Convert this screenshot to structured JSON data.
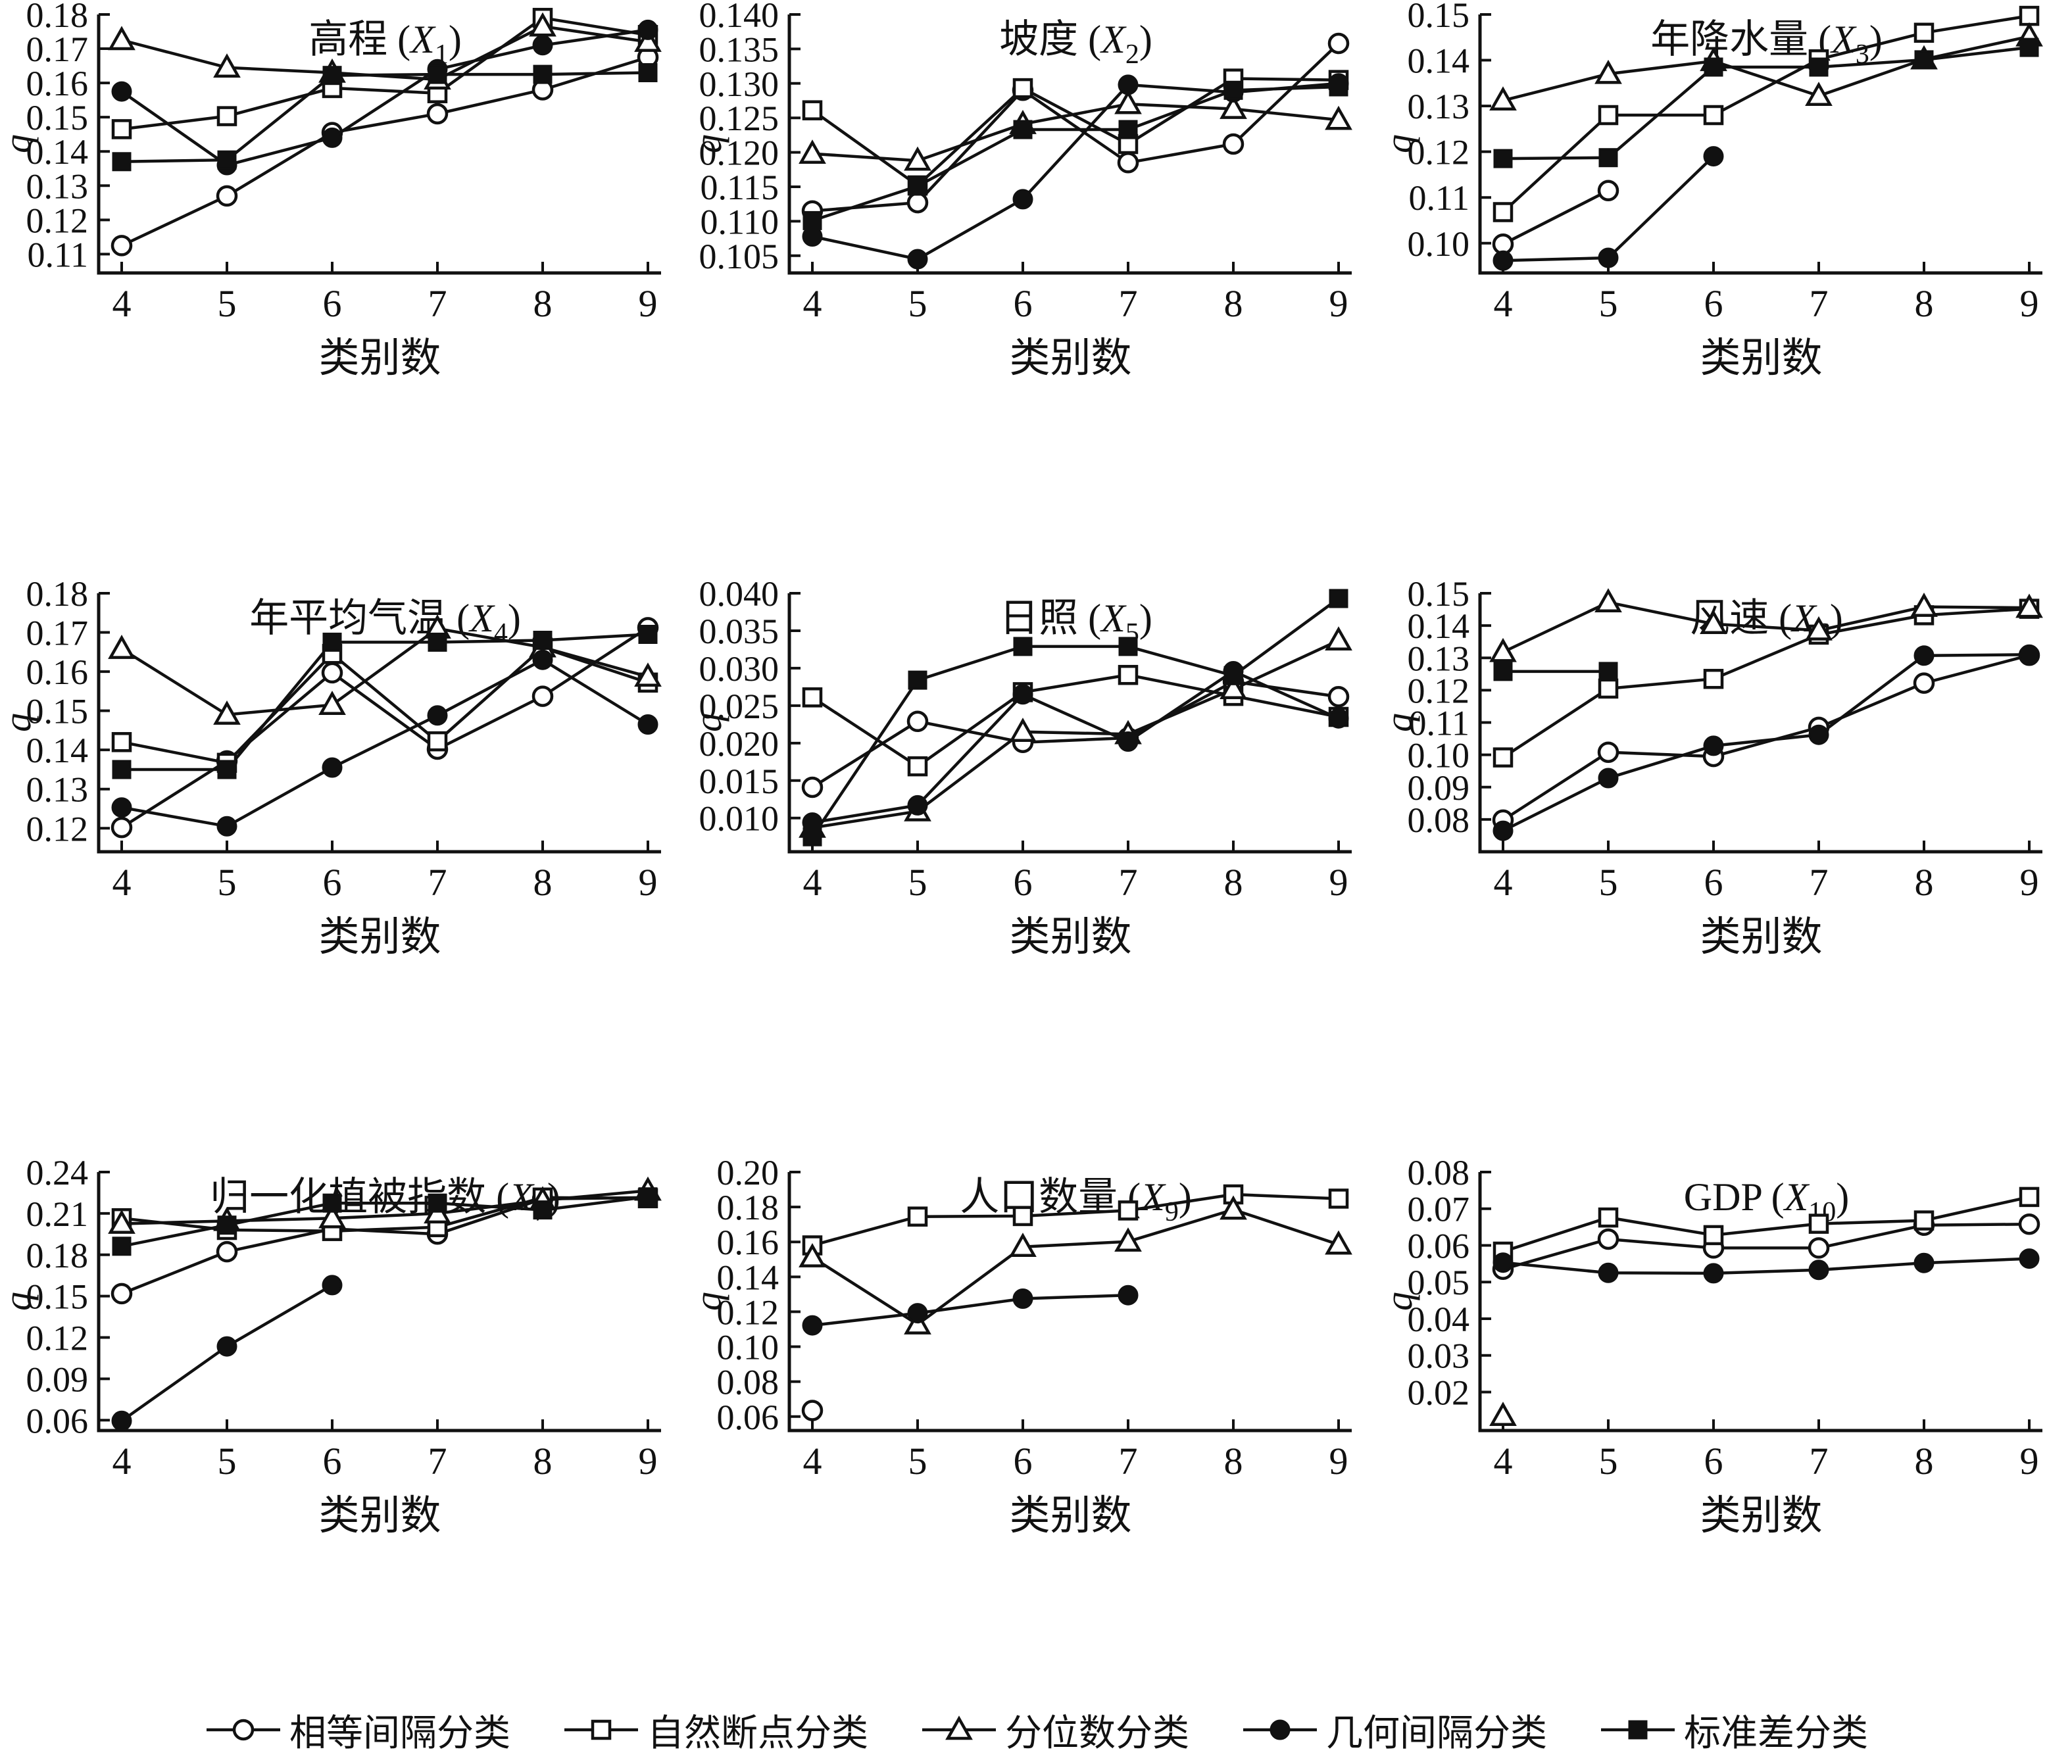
{
  "figure": {
    "xlabel": "类别数",
    "ylabel": "q",
    "x_categories": [
      4,
      5,
      6,
      7,
      8,
      9
    ],
    "line_color": "#111111",
    "background": "#ffffff",
    "series_defs": [
      {
        "id": "equal-interval",
        "label": "相等间隔分类",
        "marker": "circle",
        "fill": "open"
      },
      {
        "id": "natural-breaks",
        "label": "自然断点分类",
        "marker": "square",
        "fill": "open"
      },
      {
        "id": "quantile",
        "label": "分位数分类",
        "marker": "triangle",
        "fill": "open"
      },
      {
        "id": "geometric-interval",
        "label": "几何间隔分类",
        "marker": "circle",
        "fill": "filled"
      },
      {
        "id": "std-dev",
        "label": "标准差分类",
        "marker": "square",
        "fill": "filled"
      }
    ]
  },
  "chart_data": [
    {
      "type": "line",
      "id": "x1",
      "title_zh": "高程",
      "title_var": "X",
      "title_sub": "1",
      "xlabel": "类别数",
      "ylabel": "q",
      "x": [
        4,
        5,
        6,
        7,
        8,
        9
      ],
      "ylim": [
        0.1045,
        0.18
      ],
      "yticks": [
        0.11,
        0.12,
        0.13,
        0.14,
        0.15,
        0.16,
        0.17,
        0.18
      ],
      "ytick_decimals": 2,
      "series": [
        {
          "name": "相等间隔分类",
          "values": [
            0.1125,
            0.127,
            0.1455,
            0.151,
            0.158,
            0.1675
          ]
        },
        {
          "name": "自然断点分类",
          "values": [
            0.1465,
            0.1503,
            0.1585,
            0.157,
            0.179,
            0.174
          ]
        },
        {
          "name": "分位数分类",
          "values": [
            0.1725,
            0.1645,
            0.163,
            0.161,
            0.1765,
            0.172
          ]
        },
        {
          "name": "几何间隔分类",
          "values": [
            0.1575,
            0.136,
            0.144,
            0.164,
            0.171,
            0.1755
          ]
        },
        {
          "name": "标准差分类",
          "values": [
            0.137,
            0.1375,
            0.1622,
            0.1625,
            0.1625,
            0.163
          ]
        }
      ]
    },
    {
      "type": "line",
      "id": "x2",
      "title_zh": "坡度",
      "title_var": "X",
      "title_sub": "2",
      "xlabel": "类别数",
      "ylabel": "q",
      "x": [
        4,
        5,
        6,
        7,
        8,
        9
      ],
      "ylim": [
        0.1025,
        0.14
      ],
      "yticks": [
        0.105,
        0.11,
        0.115,
        0.12,
        0.125,
        0.13,
        0.135,
        0.14
      ],
      "ytick_decimals": 3,
      "series": [
        {
          "name": "相等间隔分类",
          "values": [
            0.1115,
            0.1127,
            0.129,
            0.1185,
            0.1212,
            0.1358
          ]
        },
        {
          "name": "自然断点分类",
          "values": [
            0.1261,
            0.1152,
            0.1293,
            0.1212,
            0.1307,
            0.1305
          ]
        },
        {
          "name": "分位数分类",
          "values": [
            0.1198,
            0.1188,
            0.1241,
            0.127,
            0.1263,
            0.1247
          ]
        },
        {
          "name": "几何间隔分类",
          "values": [
            0.1078,
            0.1045,
            0.1132,
            0.1298,
            0.1287,
            0.13
          ]
        },
        {
          "name": "标准差分类",
          "values": [
            0.1101,
            0.1151,
            0.1233,
            0.1233,
            0.129,
            0.1295
          ]
        }
      ]
    },
    {
      "type": "line",
      "id": "x3",
      "title_zh": "年降水量",
      "title_var": "X",
      "title_sub": "3",
      "xlabel": "类别数",
      "ylabel": "q",
      "x": [
        4,
        5,
        6,
        7,
        8,
        9
      ],
      "ylim": [
        0.0935,
        0.15
      ],
      "yticks": [
        0.1,
        0.11,
        0.12,
        0.13,
        0.14,
        0.15
      ],
      "ytick_decimals": 2,
      "series": [
        {
          "name": "相等间隔分类",
          "values": [
            0.0998,
            0.1115,
            null,
            null,
            null,
            null
          ]
        },
        {
          "name": "自然断点分类",
          "values": [
            0.1068,
            0.128,
            0.128,
            0.1402,
            0.146,
            0.1497
          ]
        },
        {
          "name": "分位数分类",
          "values": [
            0.1312,
            0.137,
            0.1398,
            0.1322,
            0.1402,
            0.1452
          ]
        },
        {
          "name": "几何间隔分类",
          "values": [
            0.0962,
            0.0968,
            0.119,
            null,
            null,
            null
          ]
        },
        {
          "name": "标准差分类",
          "values": [
            0.1185,
            0.1187,
            0.1385,
            0.1385,
            0.1401,
            0.1428
          ]
        }
      ]
    },
    {
      "type": "line",
      "id": "x4",
      "title_zh": "年平均气温",
      "title_var": "X",
      "title_sub": "4",
      "xlabel": "类别数",
      "ylabel": "q",
      "x": [
        4,
        5,
        6,
        7,
        8,
        9
      ],
      "ylim": [
        0.114,
        0.18
      ],
      "yticks": [
        0.12,
        0.13,
        0.14,
        0.15,
        0.16,
        0.17,
        0.18
      ],
      "ytick_decimals": 2,
      "series": [
        {
          "name": "相等间隔分类",
          "values": [
            0.1202,
            0.1372,
            0.1597,
            0.1402,
            0.1537,
            0.1712
          ]
        },
        {
          "name": "自然断点分类",
          "values": [
            0.142,
            0.1367,
            0.1645,
            0.1422,
            0.1661,
            0.1572
          ]
        },
        {
          "name": "分位数分类",
          "values": [
            0.1658,
            0.149,
            0.1515,
            0.171,
            0.1662,
            0.1587
          ]
        },
        {
          "name": "几何间隔分类",
          "values": [
            0.1253,
            0.1205,
            0.1355,
            0.1488,
            0.163,
            0.1465
          ]
        },
        {
          "name": "标准差分类",
          "values": [
            0.135,
            0.135,
            0.1675,
            0.1675,
            0.168,
            0.1695
          ]
        }
      ]
    },
    {
      "type": "line",
      "id": "x5",
      "title_zh": "日照",
      "title_var": "X",
      "title_sub": "5",
      "xlabel": "类别数",
      "ylabel": "q",
      "x": [
        4,
        5,
        6,
        7,
        8,
        9
      ],
      "ylim": [
        0.0055,
        0.04
      ],
      "yticks": [
        0.01,
        0.015,
        0.02,
        0.025,
        0.03,
        0.035,
        0.04
      ],
      "ytick_decimals": 3,
      "series": [
        {
          "name": "相等间隔分类",
          "values": [
            0.0141,
            0.0229,
            0.0201,
            0.0207,
            0.0282,
            0.0262
          ]
        },
        {
          "name": "自然断点分类",
          "values": [
            0.0261,
            0.0169,
            0.0268,
            0.0291,
            0.0263,
            0.0235
          ]
        },
        {
          "name": "分位数分类",
          "values": [
            0.0087,
            0.0109,
            0.0215,
            0.0212,
            0.0272,
            0.0337
          ]
        },
        {
          "name": "几何间隔分类",
          "values": [
            0.0094,
            0.0117,
            0.0265,
            0.0202,
            0.0296,
            0.0233
          ]
        },
        {
          "name": "标准差分类",
          "values": [
            0.0075,
            0.0284,
            0.0329,
            0.0329,
            0.029,
            0.0393
          ]
        }
      ]
    },
    {
      "type": "line",
      "id": "x6",
      "title_zh": "风速",
      "title_var": "X",
      "title_sub": "6",
      "xlabel": "类别数",
      "ylabel": "q",
      "x": [
        4,
        5,
        6,
        7,
        8,
        9
      ],
      "ylim": [
        0.07,
        0.15
      ],
      "yticks": [
        0.08,
        0.09,
        0.1,
        0.11,
        0.12,
        0.13,
        0.14,
        0.15
      ],
      "ytick_decimals": 2,
      "series": [
        {
          "name": "相等间隔分类",
          "values": [
            0.0798,
            0.1008,
            0.0995,
            0.1085,
            0.1222,
            0.1308
          ]
        },
        {
          "name": "自然断点分类",
          "values": [
            0.0992,
            0.1205,
            0.1235,
            0.1372,
            0.1432,
            0.1452
          ]
        },
        {
          "name": "分位数分类",
          "values": [
            0.1318,
            0.1472,
            0.1405,
            0.1385,
            0.1458,
            0.1455
          ]
        },
        {
          "name": "几何间隔分类",
          "values": [
            0.0765,
            0.0928,
            0.1028,
            0.1062,
            0.1307,
            0.131
          ]
        },
        {
          "name": "标准差分类",
          "values": [
            0.1258,
            0.1258,
            null,
            null,
            null,
            null
          ]
        }
      ]
    },
    {
      "type": "line",
      "id": "x7",
      "title_zh": "归一化植被指数",
      "title_var": "X",
      "title_sub": "7",
      "xlabel": "类别数",
      "ylabel": "q",
      "x": [
        4,
        5,
        6,
        7,
        8,
        9
      ],
      "ylim": [
        0.0525,
        0.24
      ],
      "yticks": [
        0.06,
        0.09,
        0.12,
        0.15,
        0.18,
        0.21,
        0.24
      ],
      "ytick_decimals": 2,
      "series": [
        {
          "name": "相等间隔分类",
          "values": [
            0.1518,
            0.1822,
            0.1988,
            0.195,
            0.2205,
            0.2215
          ]
        },
        {
          "name": "自然断点分类",
          "values": [
            0.2065,
            0.198,
            0.1972,
            0.2,
            0.2215,
            0.221
          ]
        },
        {
          "name": "分位数分类",
          "values": [
            0.2025,
            0.2045,
            0.2065,
            0.21,
            0.2195,
            0.2265
          ]
        },
        {
          "name": "几何间隔分类",
          "values": [
            0.0595,
            0.1135,
            0.158,
            null,
            null,
            null
          ]
        },
        {
          "name": "标准差分类",
          "values": [
            0.1862,
            0.2015,
            0.2175,
            0.2175,
            0.2125,
            0.222
          ]
        }
      ]
    },
    {
      "type": "line",
      "id": "x9",
      "title_zh": "人口数量",
      "title_var": "X",
      "title_sub": "9",
      "xlabel": "类别数",
      "ylabel": "q",
      "x": [
        4,
        5,
        6,
        7,
        8,
        9
      ],
      "ylim": [
        0.052,
        0.2
      ],
      "yticks": [
        0.06,
        0.08,
        0.1,
        0.12,
        0.14,
        0.16,
        0.18,
        0.2
      ],
      "ytick_decimals": 2,
      "series": [
        {
          "name": "相等间隔分类",
          "values": [
            0.0635,
            null,
            null,
            null,
            null,
            null
          ]
        },
        {
          "name": "自然断点分类",
          "values": [
            0.158,
            0.1745,
            0.1748,
            0.178,
            0.1872,
            0.1848
          ]
        },
        {
          "name": "分位数分类",
          "values": [
            0.1512,
            0.1128,
            0.1572,
            0.1602,
            0.1785,
            0.1585
          ]
        },
        {
          "name": "几何间隔分类",
          "values": [
            0.1122,
            0.1192,
            0.1275,
            0.1295,
            null,
            null
          ]
        },
        {
          "name": "标准差分类",
          "values": [
            null,
            null,
            null,
            null,
            null,
            null
          ]
        }
      ]
    },
    {
      "type": "line",
      "id": "x10",
      "title_zh": "GDP",
      "title_var": "X",
      "title_sub": "10",
      "xlabel": "类别数",
      "ylabel": "q",
      "x": [
        4,
        5,
        6,
        7,
        8,
        9
      ],
      "ylim": [
        0.0095,
        0.08
      ],
      "yticks": [
        0.02,
        0.03,
        0.04,
        0.05,
        0.06,
        0.07,
        0.08
      ],
      "ytick_decimals": 2,
      "series": [
        {
          "name": "相等间隔分类",
          "values": [
            0.0535,
            0.0617,
            0.0593,
            0.0593,
            0.0655,
            0.0658
          ]
        },
        {
          "name": "自然断点分类",
          "values": [
            0.0583,
            0.0676,
            0.0628,
            0.0659,
            0.0668,
            0.0732
          ]
        },
        {
          "name": "分位数分类",
          "values": [
            0.0135,
            null,
            null,
            null,
            null,
            null
          ]
        },
        {
          "name": "几何间隔分类",
          "values": [
            0.0553,
            0.0525,
            0.0524,
            0.0533,
            0.0552,
            0.0564
          ]
        },
        {
          "name": "标准差分类",
          "values": [
            null,
            null,
            null,
            null,
            null,
            null
          ]
        }
      ]
    }
  ],
  "legend": {
    "items": [
      {
        "label": "相等间隔分类",
        "marker": "circle",
        "fill": "open"
      },
      {
        "label": "自然断点分类",
        "marker": "square",
        "fill": "open"
      },
      {
        "label": "分位数分类",
        "marker": "triangle",
        "fill": "open"
      },
      {
        "label": "几何间隔分类",
        "marker": "circle",
        "fill": "filled"
      },
      {
        "label": "标准差分类",
        "marker": "square",
        "fill": "filled"
      }
    ]
  }
}
